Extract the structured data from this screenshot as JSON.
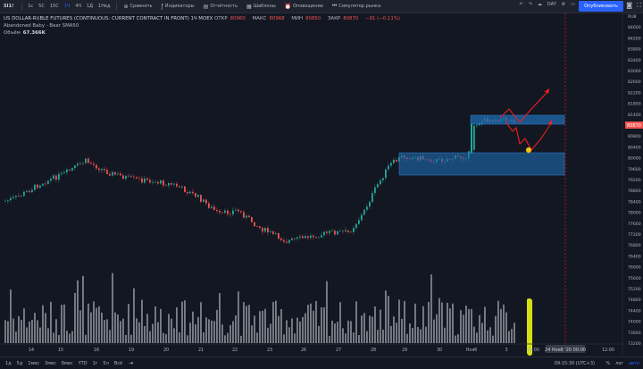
{
  "header": {
    "symbol": "SI1!",
    "timeframes": [
      "1с",
      "5С",
      "15С",
      "1Ч",
      "4Ч",
      "1Д",
      "1Нед"
    ],
    "active_timeframe": "1Ч",
    "compare": "Сравнить",
    "indicators": "Индикаторы",
    "financials": "Отчётность",
    "templates": "Шаблоны",
    "alert": "Оповещение",
    "replay": "Симулятор рынка",
    "layout_name": "DAY",
    "publish": "Опубликовать"
  },
  "legend": {
    "title": "US DOLLAR-RUBLE FUTURES (CONTINUOUS: CURRENT CONTRACT IN FRONT)",
    "interval": "1Ч",
    "exchange": "MOEX",
    "open_label": "ОТКР",
    "open_value": "80960",
    "high_label": "МАКС",
    "high_value": "80968",
    "low_label": "МИН",
    "low_value": "80850",
    "close_label": "ЗАКР",
    "close_value": "80870",
    "change": "−91 (−0.11%)",
    "indicator": "Abandoned Baby - Bear",
    "indicator_params": "SMA50",
    "volume_label": "Объём",
    "volume_value": "67.366K"
  },
  "price_axis": {
    "labels": [
      "RUB",
      "84600",
      "84200",
      "83800",
      "83400",
      "83000",
      "82600",
      "82200",
      "81800",
      "81400",
      "81200",
      "80800",
      "80400",
      "80000",
      "79600",
      "79200",
      "78800",
      "78400",
      "78000",
      "77600",
      "77200",
      "76800",
      "76400",
      "76000",
      "75600",
      "75200",
      "74800",
      "74400",
      "74000",
      "73600",
      "73200"
    ],
    "last_price": "80870"
  },
  "time_axis": {
    "labels": [
      "14",
      "15",
      "16",
      "19",
      "20",
      "21",
      "22",
      "23",
      "26",
      "27",
      "28",
      "29",
      "30",
      "Нояб",
      "3",
      "12:00",
      "12:00"
    ],
    "crosshair_label": "24 Нояб '20  00:00"
  },
  "chart_data": {
    "type": "candlestick",
    "y_unit": "RUB",
    "ylim": [
      73000,
      84800
    ],
    "last_price": 80870,
    "zones": [
      {
        "price_top": 81200,
        "price_bottom": 80950
      },
      {
        "price_top": 79850,
        "price_bottom": 79100
      }
    ],
    "colors": {
      "up": "#26a69a",
      "down": "#ef5350",
      "volume": "#8b8f99",
      "zone": "#1e6bb0",
      "arrow": "#ff1e1e",
      "marker": "#f5c518",
      "highlight": "#d4e016"
    }
  },
  "bottom": {
    "ranges": [
      "1д",
      "5д",
      "1мес",
      "3мес",
      "6мес",
      "YTD",
      "1г",
      "5л",
      "Всё"
    ],
    "clock": "09:15:30 (UTC+3)",
    "percent": "%",
    "log": "лог",
    "auto": "авто"
  }
}
